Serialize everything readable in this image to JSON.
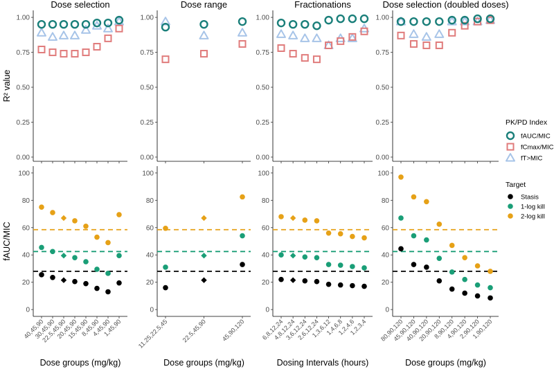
{
  "chart_data": {
    "type": "scatter",
    "layout": "faceted 2 rows x 4 columns",
    "top_row": {
      "ylabel": "R² value",
      "ylim": [
        -0.03,
        1.05
      ],
      "yticks": [
        "0.00",
        "0.25",
        "0.50",
        "0.75",
        "1.00"
      ],
      "ytick_values": [
        0,
        0.25,
        0.5,
        0.75,
        1.0
      ]
    },
    "bottom_row": {
      "ylabel": "fAUC/MIC",
      "ylim": [
        -5,
        105
      ],
      "yticks": [
        "0",
        "20",
        "40",
        "60",
        "80",
        "100"
      ],
      "ytick_values": [
        0,
        20,
        40,
        60,
        80,
        100
      ],
      "reference_lines": [
        {
          "target": "Stasis",
          "value": 28,
          "color": "#000000"
        },
        {
          "target": "1-log kill",
          "value": 42.5,
          "color": "#1a9e77"
        },
        {
          "target": "2-log kill",
          "value": 58.5,
          "color": "#e6a117"
        }
      ]
    },
    "panels": [
      {
        "title": "Dose selection",
        "xlabel": "Dose groups (mg/kg)",
        "categories": [
          "40,45,90",
          "30,45,90",
          "22.5,45,90",
          "20,45,90",
          "15,45,90",
          "8,45,90",
          "4,45,90",
          "1,45,90"
        ],
        "r2": {
          "fAUC/MIC": [
            0.95,
            0.95,
            0.95,
            0.95,
            0.95,
            0.96,
            0.96,
            0.98
          ],
          "fCmax/MIC": [
            0.77,
            0.75,
            0.74,
            0.74,
            0.75,
            0.79,
            0.85,
            0.92
          ],
          "fT>MIC": [
            0.89,
            0.86,
            0.87,
            0.87,
            0.91,
            0.94,
            0.92,
            0.97
          ]
        },
        "targets": {
          "Stasis": [
            25.5,
            23.5,
            21.5,
            20.5,
            19,
            15.5,
            13,
            19.5
          ],
          "1-log kill": [
            45.5,
            42.5,
            39.5,
            38,
            35,
            29.5,
            26.5,
            39.5
          ],
          "2-log kill": [
            75,
            71,
            67,
            65,
            61,
            53,
            49,
            69.5
          ]
        },
        "diamond_index": 2
      },
      {
        "title": "Dose range",
        "xlabel": "Dose groups (mg/kg)",
        "categories": [
          "11.25,22.5,45",
          "22.5,45,90",
          "45,90,120"
        ],
        "r2": {
          "fAUC/MIC": [
            0.93,
            0.95,
            0.97
          ],
          "fCmax/MIC": [
            0.7,
            0.74,
            0.81
          ],
          "fT>MIC": [
            0.97,
            0.87,
            0.89
          ]
        },
        "targets": {
          "Stasis": [
            16,
            21.5,
            33
          ],
          "1-log kill": [
            31,
            39.5,
            54
          ],
          "2-log kill": [
            59.5,
            67,
            82.5
          ]
        },
        "diamond_index": 1
      },
      {
        "title": "Fractionations",
        "xlabel": "Dosing Intervals (hours)",
        "categories": [
          "6,8,12,24",
          "4,8,12,24",
          "3,6,12,24",
          "2,6,12,24",
          "1,3,6,12",
          "1,4,6,8",
          "1,2,4,6",
          "1,2,3,4"
        ],
        "r2": {
          "fAUC/MIC": [
            0.96,
            0.95,
            0.95,
            0.94,
            0.98,
            0.99,
            0.99,
            0.99
          ],
          "fCmax/MIC": [
            0.78,
            0.74,
            0.71,
            0.7,
            0.8,
            0.83,
            0.86,
            0.9
          ],
          "fT>MIC": [
            0.88,
            0.87,
            0.85,
            0.85,
            0.8,
            0.85,
            0.85,
            0.92
          ]
        },
        "targets": {
          "Stasis": [
            22,
            21.5,
            21,
            20.5,
            18.5,
            18,
            17.5,
            17
          ],
          "1-log kill": [
            40,
            39.5,
            38.5,
            38,
            33,
            32.5,
            31.5,
            30.5
          ],
          "2-log kill": [
            68,
            67,
            65.5,
            65,
            56,
            55.5,
            53.5,
            52.5
          ]
        },
        "diamond_index": 1
      },
      {
        "title": "Dose selection (doubled doses)",
        "xlabel": "Dose groups (mg/kg)",
        "categories": [
          "80,90,120",
          "45,90,120",
          "40,90,120",
          "20,90,120",
          "8,90,120",
          "4,90,120",
          "2,90,120",
          "1,90,120"
        ],
        "r2": {
          "fAUC/MIC": [
            0.97,
            0.97,
            0.97,
            0.97,
            0.98,
            0.98,
            0.99,
            0.99
          ],
          "fCmax/MIC": [
            0.87,
            0.81,
            0.8,
            0.8,
            0.89,
            0.94,
            0.97,
            0.98
          ],
          "fT>MIC": [
            0.97,
            0.88,
            0.86,
            0.88,
            0.97,
            0.97,
            0.97,
            0.98
          ]
        },
        "targets": {
          "Stasis": [
            44.5,
            33,
            31,
            21,
            15,
            12,
            10,
            8.5
          ],
          "1-log kill": [
            67,
            54,
            51,
            37.5,
            27.5,
            22,
            18,
            16
          ],
          "2-log kill": [
            97,
            82.5,
            79,
            62.5,
            47,
            38,
            32,
            28
          ]
        },
        "diamond_index": -1
      }
    ],
    "legend_pkpd": {
      "title": "PK/PD Index",
      "items": [
        {
          "label": "fAUC/MIC",
          "color": "#1a7f7a",
          "shape": "circle"
        },
        {
          "label": "fCmax/MIC",
          "color": "#e07b7b",
          "shape": "square"
        },
        {
          "label": "fT>MIC",
          "color": "#a7c4e8",
          "shape": "triangle"
        }
      ]
    },
    "legend_target": {
      "title": "Target",
      "items": [
        {
          "label": "Stasis",
          "color": "#000000"
        },
        {
          "label": "1-log kill",
          "color": "#1a9e77"
        },
        {
          "label": "2-log kill",
          "color": "#e6a117"
        }
      ]
    }
  }
}
